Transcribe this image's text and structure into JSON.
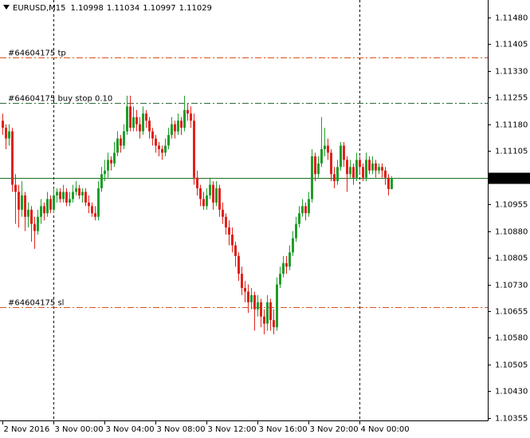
{
  "chart_data": {
    "type": "candlestick",
    "title": "EURUSD,M15",
    "categories": [
      "2 Nov 2016",
      null,
      null,
      null,
      null,
      null,
      null,
      null,
      null,
      null,
      null,
      null,
      null,
      null,
      null,
      null,
      "3 Nov 00:00",
      null,
      null,
      null,
      null,
      null,
      null,
      null,
      null,
      null,
      null,
      null,
      null,
      null,
      null,
      null,
      "3 Nov 04:00",
      null,
      null,
      null,
      null,
      null,
      null,
      null,
      null,
      null,
      null,
      null,
      null,
      null,
      null,
      null,
      "3 Nov 08:00",
      null,
      null,
      null,
      null,
      null,
      null,
      null,
      null,
      null,
      null,
      null,
      null,
      null,
      null,
      null,
      "3 Nov 12:00",
      null,
      null,
      null,
      null,
      null,
      null,
      null,
      null,
      null,
      null,
      null,
      null,
      null,
      null,
      null,
      "3 Nov 16:00",
      null,
      null,
      null,
      null,
      null,
      null,
      null,
      null,
      null,
      null,
      null,
      null,
      null,
      null,
      null,
      "3 Nov 20:00",
      null,
      null,
      null,
      null,
      null,
      null,
      null,
      null,
      null,
      null,
      null,
      null,
      null,
      null,
      null,
      "4 Nov 00:00",
      null,
      null,
      null,
      null,
      null,
      null,
      null,
      null,
      null,
      null
    ],
    "open": [
      1.1119,
      1.1117,
      1.1114,
      1.1116,
      1.1101,
      1.1099,
      1.1094,
      1.1098,
      1.1092,
      1.1094,
      1.109,
      1.1088,
      1.1092,
      1.1095,
      1.1093,
      1.1097,
      1.1094,
      1.1098,
      1.1099,
      1.1097,
      1.1099,
      1.1096,
      1.1097,
      1.1099,
      1.11,
      1.1098,
      1.1099,
      1.1096,
      1.1095,
      1.1093,
      1.1092,
      1.11,
      1.1104,
      1.1105,
      1.1108,
      1.1107,
      1.111,
      1.1114,
      1.1112,
      1.1116,
      1.1123,
      1.1117,
      1.112,
      1.1118,
      1.1116,
      1.1121,
      1.1119,
      1.1116,
      1.1114,
      1.1112,
      1.1111,
      1.111,
      1.1112,
      1.1115,
      1.1118,
      1.1116,
      1.1119,
      1.1117,
      1.1122,
      1.1121,
      1.1119,
      1.1103,
      1.11,
      1.1097,
      1.1095,
      1.1098,
      1.1101,
      1.1096,
      1.11,
      1.1094,
      1.1092,
      1.1089,
      1.1087,
      1.1084,
      1.1081,
      1.1076,
      1.1072,
      1.1071,
      1.1068,
      1.107,
      1.1066,
      1.1068,
      1.1064,
      1.1062,
      1.1068,
      1.1063,
      1.1061,
      1.1073,
      1.1076,
      1.1079,
      1.1078,
      1.1082,
      1.1086,
      1.109,
      1.1093,
      1.1095,
      1.1093,
      1.1097,
      1.1109,
      1.1104,
      1.1107,
      1.1111,
      1.1112,
      1.111,
      1.1104,
      1.1102,
      1.1106,
      1.1112,
      1.1108,
      1.1104,
      1.1106,
      1.1103,
      1.1108,
      1.1106,
      1.1103,
      1.1108,
      1.1105,
      1.1107,
      1.1105,
      1.1106,
      1.1105,
      1.1103,
      1.10998
    ],
    "high": [
      1.1121,
      1.1118,
      1.1118,
      1.1117,
      1.1104,
      1.1101,
      1.1102,
      1.1099,
      1.1096,
      1.1095,
      1.1092,
      1.1094,
      1.1097,
      1.1096,
      1.1099,
      1.1098,
      1.11,
      1.11,
      1.11,
      1.1101,
      1.11,
      1.1099,
      1.1101,
      1.1102,
      1.1101,
      1.11,
      1.11,
      1.1098,
      1.1096,
      1.1095,
      1.1102,
      1.1106,
      1.1108,
      1.111,
      1.1109,
      1.1113,
      1.1116,
      1.1115,
      1.1118,
      1.1126,
      1.1126,
      1.1123,
      1.1122,
      1.112,
      1.1123,
      1.1122,
      1.112,
      1.1117,
      1.1115,
      1.1113,
      1.1112,
      1.1114,
      1.1117,
      1.112,
      1.1119,
      1.1121,
      1.112,
      1.1126,
      1.1124,
      1.1123,
      1.1121,
      1.1105,
      1.1101,
      1.1099,
      1.11,
      1.1103,
      1.1102,
      1.1102,
      1.1101,
      1.1096,
      1.1093,
      1.1091,
      1.1089,
      1.1085,
      1.1082,
      1.1078,
      1.1074,
      1.1073,
      1.1072,
      1.1071,
      1.107,
      1.1069,
      1.1066,
      1.107,
      1.1069,
      1.1066,
      1.1075,
      1.1078,
      1.1081,
      1.1081,
      1.1084,
      1.1088,
      1.1092,
      1.1095,
      1.1097,
      1.1096,
      1.1099,
      1.1111,
      1.111,
      1.1109,
      1.112,
      1.1117,
      1.1114,
      1.1111,
      1.1106,
      1.1108,
      1.1113,
      1.1113,
      1.1109,
      1.1108,
      1.1107,
      1.111,
      1.1109,
      1.1107,
      1.111,
      1.1109,
      1.1109,
      1.1108,
      1.1107,
      1.1107,
      1.1106,
      1.1104,
      1.11034
    ],
    "low": [
      1.1115,
      1.1111,
      1.1112,
      1.1099,
      1.109,
      1.1089,
      1.1092,
      1.1088,
      1.1089,
      1.1085,
      1.1083,
      1.1087,
      1.109,
      1.1091,
      1.1092,
      1.1093,
      1.1093,
      1.1096,
      1.1096,
      1.1096,
      1.1095,
      1.1095,
      1.1096,
      1.1098,
      1.1097,
      1.1096,
      1.1095,
      1.1093,
      1.1092,
      1.1091,
      1.1091,
      1.1099,
      1.1102,
      1.1103,
      1.1105,
      1.1106,
      1.1109,
      1.111,
      1.1111,
      1.1115,
      1.1116,
      1.1116,
      1.1116,
      1.1114,
      1.1115,
      1.1117,
      1.1114,
      1.1112,
      1.111,
      1.1109,
      1.1108,
      1.1109,
      1.1111,
      1.1114,
      1.1114,
      1.1115,
      1.1115,
      1.1116,
      1.1119,
      1.1117,
      1.1101,
      1.1098,
      1.1095,
      1.1094,
      1.1094,
      1.1097,
      1.1094,
      1.1095,
      1.1092,
      1.109,
      1.1087,
      1.1084,
      1.1082,
      1.1078,
      1.1074,
      1.107,
      1.1068,
      1.1065,
      1.1066,
      1.106,
      1.1064,
      1.1061,
      1.1059,
      1.106,
      1.106,
      1.1059,
      1.106,
      1.1072,
      1.1075,
      1.1076,
      1.1077,
      1.1081,
      1.1085,
      1.1089,
      1.1092,
      1.1091,
      1.1092,
      1.1096,
      1.1102,
      1.1103,
      1.1106,
      1.1109,
      1.1108,
      1.1102,
      1.11,
      1.1101,
      1.1105,
      1.1106,
      1.1099,
      1.1103,
      1.1101,
      1.1102,
      1.1104,
      1.1102,
      1.1102,
      1.1104,
      1.1104,
      1.1103,
      1.1104,
      1.1103,
      1.1101,
      1.1098,
      1.10997
    ],
    "close": [
      1.1117,
      1.1114,
      1.1116,
      1.1101,
      1.1099,
      1.1094,
      1.1098,
      1.1092,
      1.1094,
      1.109,
      1.1088,
      1.1092,
      1.1095,
      1.1093,
      1.1097,
      1.1094,
      1.1098,
      1.1099,
      1.1097,
      1.1099,
      1.1096,
      1.1097,
      1.1099,
      1.11,
      1.1098,
      1.1099,
      1.1096,
      1.1095,
      1.1093,
      1.1092,
      1.11,
      1.1104,
      1.1105,
      1.1108,
      1.1107,
      1.111,
      1.1114,
      1.1112,
      1.1116,
      1.1123,
      1.1117,
      1.112,
      1.1118,
      1.1116,
      1.1121,
      1.1119,
      1.1116,
      1.1114,
      1.1112,
      1.1111,
      1.111,
      1.1112,
      1.1115,
      1.1118,
      1.1116,
      1.1119,
      1.1117,
      1.1122,
      1.1121,
      1.1119,
      1.1103,
      1.11,
      1.1097,
      1.1095,
      1.1098,
      1.1101,
      1.1096,
      1.11,
      1.1094,
      1.1092,
      1.1089,
      1.1087,
      1.1084,
      1.1081,
      1.1076,
      1.1072,
      1.1071,
      1.1068,
      1.107,
      1.1066,
      1.1068,
      1.1064,
      1.1062,
      1.1068,
      1.1063,
      1.1061,
      1.1073,
      1.1076,
      1.1079,
      1.1078,
      1.1082,
      1.1086,
      1.109,
      1.1093,
      1.1095,
      1.1093,
      1.1097,
      1.1109,
      1.1104,
      1.1107,
      1.1111,
      1.1112,
      1.111,
      1.1104,
      1.1102,
      1.1106,
      1.1112,
      1.1108,
      1.1104,
      1.1106,
      1.1103,
      1.1108,
      1.1106,
      1.1103,
      1.1108,
      1.1105,
      1.1107,
      1.1105,
      1.1106,
      1.1105,
      1.1103,
      1.10998,
      1.11029
    ],
    "up_color": "#1f9e2a",
    "down_color": "#e0221c",
    "last_price_color": "#1f6e1f",
    "ylim": [
      1.10348,
      1.11529
    ],
    "yticks": [
      {
        "value": 1.1148,
        "label": "1.11480"
      },
      1.11405,
      {
        "value": 1.1133,
        "label": "1.11330"
      },
      1.11255,
      {
        "value": 1.1118,
        "label": "1.11180"
      },
      1.11105,
      1.10955,
      {
        "value": 1.1088,
        "label": "1.10880"
      },
      1.10805,
      {
        "value": 1.1073,
        "label": "1.10730"
      },
      1.10655,
      {
        "value": 1.1058,
        "label": "1.10580"
      },
      1.10505,
      {
        "value": 1.1043,
        "label": "1.10430"
      },
      1.10355
    ],
    "period_separators": true,
    "levels": [
      {
        "label": "#64604175 tp",
        "value": 1.11368,
        "color": "#e0501e"
      },
      {
        "label": "#64604175 buy stop 0.10",
        "value": 1.11239,
        "color": "#2f6b3a"
      },
      {
        "label": "#64604175 sl",
        "value": 1.10666,
        "color": "#e0501e"
      }
    ]
  }
}
